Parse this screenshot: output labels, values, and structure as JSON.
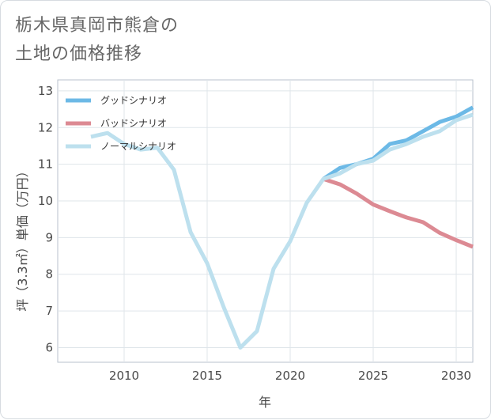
{
  "title_line1": "栃木県真岡市熊倉の",
  "title_line2": "土地の価格推移",
  "chart_data": {
    "type": "line",
    "xlabel": "年",
    "ylabel": "坪（3.3㎡）単価（万円）",
    "xlim": [
      2006,
      2031
    ],
    "ylim": [
      5.6,
      13.3
    ],
    "xticks": [
      2010,
      2015,
      2020,
      2025,
      2030
    ],
    "yticks": [
      6,
      7,
      8,
      9,
      10,
      11,
      12,
      13
    ],
    "grid": true,
    "legend_position": "top-left",
    "series": [
      {
        "name": "グッドシナリオ",
        "color": "#6cb9e6",
        "x": [
          2022,
          2023,
          2024,
          2025,
          2026,
          2027,
          2028,
          2029,
          2030,
          2031
        ],
        "y": [
          10.6,
          10.9,
          11.0,
          11.15,
          11.55,
          11.65,
          11.9,
          12.15,
          12.3,
          12.55
        ]
      },
      {
        "name": "バッドシナリオ",
        "color": "#dc8a93",
        "x": [
          2022,
          2023,
          2024,
          2025,
          2026,
          2027,
          2028,
          2029,
          2030,
          2031
        ],
        "y": [
          10.6,
          10.45,
          10.2,
          9.9,
          9.72,
          9.55,
          9.42,
          9.13,
          8.93,
          8.75
        ]
      },
      {
        "name": "ノーマルシナリオ",
        "color": "#bde0ee",
        "x": [
          2008,
          2009,
          2010,
          2011,
          2012,
          2013,
          2014,
          2015,
          2016,
          2017,
          2018,
          2019,
          2020,
          2021,
          2022,
          2023,
          2024,
          2025,
          2026,
          2027,
          2028,
          2029,
          2030,
          2031
        ],
        "y": [
          11.75,
          11.85,
          11.55,
          11.4,
          11.45,
          10.85,
          9.15,
          8.3,
          7.1,
          6.0,
          6.45,
          8.15,
          8.9,
          9.95,
          10.6,
          10.75,
          11.0,
          11.1,
          11.4,
          11.55,
          11.75,
          11.9,
          12.2,
          12.35
        ]
      }
    ]
  }
}
